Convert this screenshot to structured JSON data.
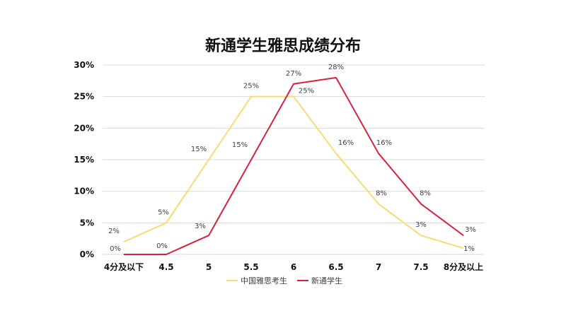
{
  "chart_data": {
    "type": "line",
    "title": "新通学生雅思成绩分布",
    "categories": [
      "4分及以下",
      "4.5",
      "5",
      "5.5",
      "6",
      "6.5",
      "7",
      "7.5",
      "8分及以上"
    ],
    "y_ticks": [
      "0%",
      "5%",
      "10%",
      "15%",
      "20%",
      "25%",
      "30%"
    ],
    "ylim": [
      0,
      30
    ],
    "grid": true,
    "legend_position": "bottom",
    "series": [
      {
        "name": "中国雅思考生",
        "color": "#F7DC6F",
        "values": [
          2,
          5,
          15,
          25,
          25,
          16,
          8,
          3,
          1
        ],
        "labels": [
          "2%",
          "5%",
          "15%",
          "25%",
          "25%",
          "16%",
          "8%",
          "3%",
          "1%"
        ]
      },
      {
        "name": "新通学生",
        "color": "#D9213D",
        "values": [
          0,
          0,
          3,
          15,
          27,
          28,
          16,
          8,
          3
        ],
        "labels": [
          "0%",
          "0%",
          "3%",
          "15%",
          "27%",
          "28%",
          "16%",
          "8%",
          "3%"
        ]
      }
    ]
  }
}
